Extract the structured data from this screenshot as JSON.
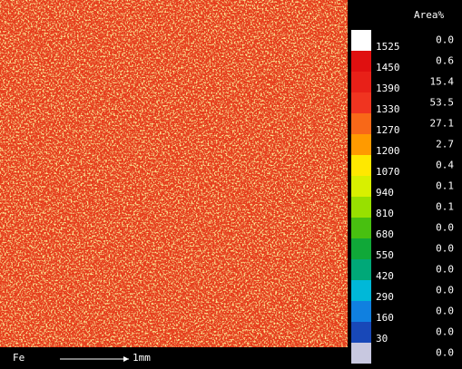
{
  "map": {
    "element": "Fe",
    "scale_label": "1mm"
  },
  "legend": {
    "header": "Area%",
    "colors": [
      "#ffffff",
      "#e01010",
      "#e82018",
      "#f03420",
      "#f86818",
      "#ff9a00",
      "#ffe800",
      "#d8f000",
      "#98e000",
      "#48c010",
      "#10a838",
      "#00a878",
      "#00b8d8",
      "#1080e0",
      "#1848b8",
      "#c8c8e0"
    ],
    "thresholds": [
      "1525",
      "1450",
      "1390",
      "1330",
      "1270",
      "1200",
      "1070",
      "940",
      "810",
      "680",
      "550",
      "420",
      "290",
      "160",
      "30"
    ],
    "area": [
      "0.0",
      "0.6",
      "15.4",
      "53.5",
      "27.1",
      "2.7",
      "0.4",
      "0.1",
      "0.1",
      "0.0",
      "0.0",
      "0.0",
      "0.0",
      "0.0",
      "0.0",
      "0.0"
    ]
  }
}
